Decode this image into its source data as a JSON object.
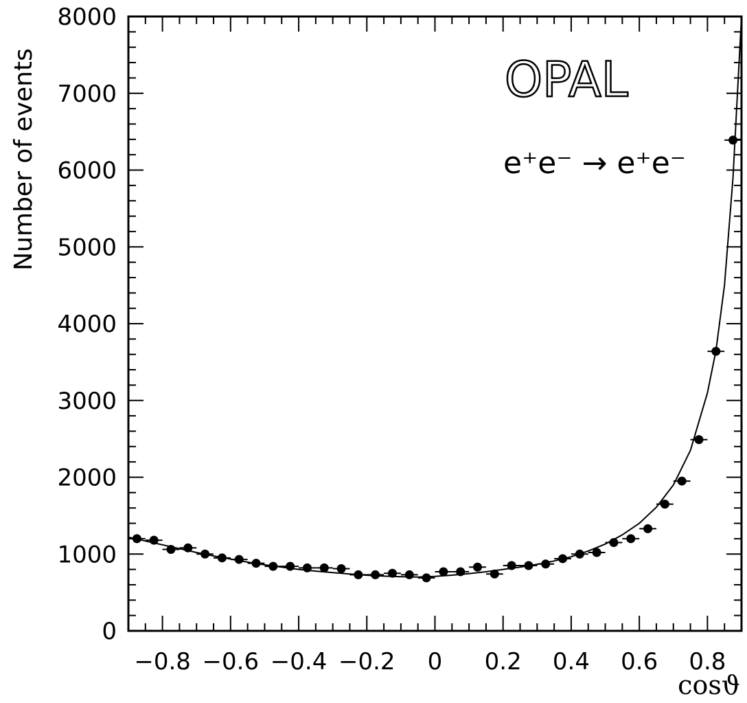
{
  "chart_data": {
    "type": "scatter",
    "title": "",
    "annotations": {
      "experiment": "OPAL",
      "process": "e⁺e⁻ → e⁺e⁻"
    },
    "xlabel": "cosϑ",
    "ylabel": "Number of events",
    "xlim": [
      -0.9,
      0.9
    ],
    "ylim": [
      0,
      8000
    ],
    "x_ticks": [
      -0.8,
      -0.6,
      -0.4,
      -0.2,
      0,
      0.2,
      0.4,
      0.6,
      0.8
    ],
    "x_tick_labels": [
      "−0.8",
      "−0.6",
      "−0.4",
      "−0.2",
      "0",
      "0.2",
      "0.4",
      "0.6",
      "0.8"
    ],
    "y_ticks": [
      0,
      1000,
      2000,
      3000,
      4000,
      5000,
      6000,
      7000,
      8000
    ],
    "y_tick_labels": [
      "0",
      "1000",
      "2000",
      "3000",
      "4000",
      "5000",
      "6000",
      "7000",
      "8000"
    ],
    "grid": false,
    "legend": "none",
    "series": [
      {
        "kind": "points-with-xerror",
        "bin_half_width": 0.025,
        "x": [
          -0.875,
          -0.825,
          -0.775,
          -0.725,
          -0.675,
          -0.625,
          -0.575,
          -0.525,
          -0.475,
          -0.425,
          -0.375,
          -0.325,
          -0.275,
          -0.225,
          -0.175,
          -0.125,
          -0.075,
          -0.025,
          0.025,
          0.075,
          0.125,
          0.175,
          0.225,
          0.275,
          0.325,
          0.375,
          0.425,
          0.475,
          0.525,
          0.575,
          0.625,
          0.675,
          0.725,
          0.775,
          0.825,
          0.875
        ],
        "y": [
          1200,
          1180,
          1060,
          1080,
          1000,
          950,
          930,
          880,
          840,
          840,
          820,
          820,
          810,
          730,
          730,
          750,
          730,
          690,
          770,
          770,
          830,
          740,
          850,
          850,
          870,
          940,
          1000,
          1020,
          1150,
          1200,
          1330,
          1650,
          1950,
          2490,
          3640,
          6390
        ]
      },
      {
        "kind": "curve",
        "x": [
          -0.9,
          -0.85,
          -0.8,
          -0.75,
          -0.7,
          -0.65,
          -0.6,
          -0.55,
          -0.5,
          -0.45,
          -0.4,
          -0.35,
          -0.3,
          -0.25,
          -0.2,
          -0.15,
          -0.1,
          -0.05,
          0,
          0.05,
          0.1,
          0.15,
          0.2,
          0.25,
          0.3,
          0.35,
          0.4,
          0.45,
          0.5,
          0.55,
          0.6,
          0.65,
          0.7,
          0.75,
          0.8,
          0.825,
          0.85,
          0.875,
          0.9
        ],
        "y": [
          1220,
          1170,
          1120,
          1070,
          1020,
          975,
          935,
          895,
          860,
          830,
          800,
          778,
          758,
          740,
          724,
          712,
          704,
          700,
          710,
          725,
          745,
          770,
          800,
          830,
          865,
          910,
          965,
          1040,
          1130,
          1250,
          1400,
          1610,
          1900,
          2350,
          3100,
          3650,
          4500,
          5900,
          8000
        ]
      }
    ]
  }
}
